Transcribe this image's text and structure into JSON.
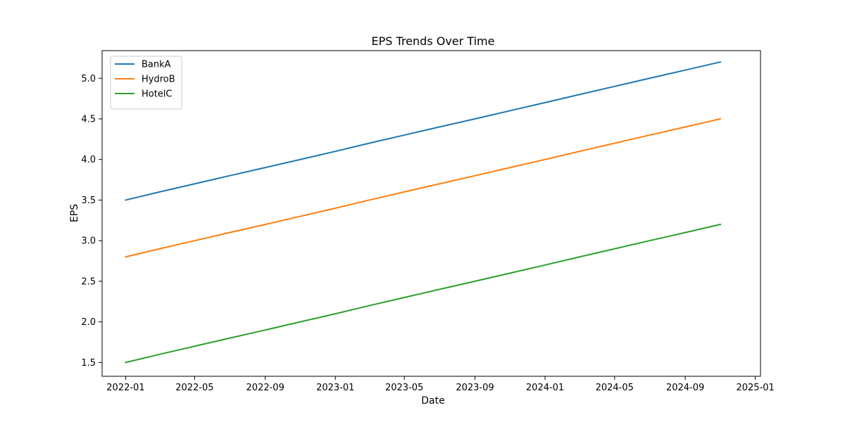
{
  "chart_data": {
    "type": "line",
    "title": "EPS Trends Over Time",
    "xlabel": "Date",
    "ylabel": "EPS",
    "x": [
      "2022-01",
      "2022-03",
      "2022-05",
      "2022-07",
      "2022-09",
      "2022-11",
      "2023-01",
      "2023-03",
      "2023-05",
      "2023-07",
      "2023-09",
      "2023-11",
      "2024-01",
      "2024-03",
      "2024-05",
      "2024-07",
      "2024-09",
      "2024-11"
    ],
    "series": [
      {
        "name": "BankA",
        "color": "#1f77b4",
        "values": [
          3.5,
          3.6,
          3.7,
          3.8,
          3.9,
          4.0,
          4.1,
          4.2,
          4.3,
          4.4,
          4.5,
          4.6,
          4.7,
          4.8,
          4.9,
          5.0,
          5.1,
          5.2
        ]
      },
      {
        "name": "HydroB",
        "color": "#ff7f0e",
        "values": [
          2.8,
          2.9,
          3.0,
          3.1,
          3.2,
          3.3,
          3.4,
          3.5,
          3.6,
          3.7,
          3.8,
          3.9,
          4.0,
          4.1,
          4.2,
          4.3,
          4.4,
          4.5
        ]
      },
      {
        "name": "HotelC",
        "color": "#2ca02c",
        "values": [
          1.5,
          1.6,
          1.7,
          1.8,
          1.9,
          2.0,
          2.1,
          2.2,
          2.3,
          2.4,
          2.5,
          2.6,
          2.7,
          2.8,
          2.9,
          3.0,
          3.1,
          3.2
        ]
      }
    ],
    "xticks": [
      "2022-01",
      "2022-05",
      "2022-09",
      "2023-01",
      "2023-05",
      "2023-09",
      "2024-01",
      "2024-05",
      "2024-09",
      "2025-01"
    ],
    "yticks": [
      "1.5",
      "2.0",
      "2.5",
      "3.0",
      "3.5",
      "4.0",
      "4.5",
      "5.0"
    ],
    "xlim": [
      "2021-11-21",
      "2025-01-10"
    ],
    "ylim": [
      1.33,
      5.34
    ],
    "grid": false,
    "legend_position": "top-left"
  }
}
